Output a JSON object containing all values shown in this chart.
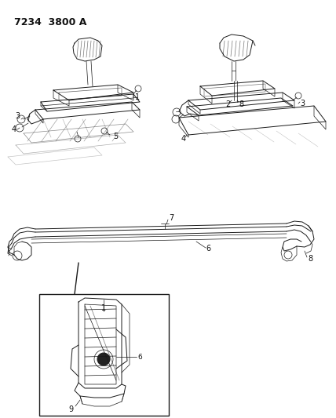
{
  "title": "7234  3800 A",
  "bg_color": "#ffffff",
  "line_color": "#1a1a1a",
  "text_color": "#111111",
  "fig_width": 4.28,
  "fig_height": 5.33,
  "dpi": 100,
  "title_fontsize": 9,
  "label_fontsize": 6.5
}
